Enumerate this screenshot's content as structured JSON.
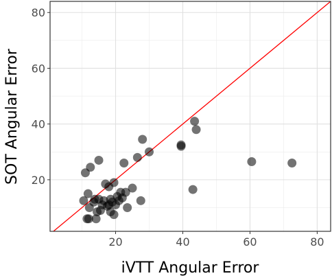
{
  "chart_data": {
    "type": "scatter",
    "xlabel": "iVTT Angular Error",
    "ylabel": "SOT Angular Error",
    "xlim": [
      0.5,
      84
    ],
    "ylim": [
      1.5,
      84
    ],
    "x_ticks": [
      20,
      40,
      60,
      80
    ],
    "y_ticks": [
      20,
      40,
      60,
      80
    ],
    "x_tick_labels": [
      "20",
      "40",
      "60",
      "80"
    ],
    "y_tick_labels": [
      "20",
      "40",
      "60",
      "80"
    ],
    "grid": true,
    "reference_line": {
      "slope": 1,
      "intercept": 0,
      "color": "#ff0000"
    },
    "point_color": "#000000",
    "point_opacity": 0.55,
    "points": [
      {
        "x": 10.5,
        "y": 12.5
      },
      {
        "x": 11.0,
        "y": 22.5
      },
      {
        "x": 11.8,
        "y": 15.0
      },
      {
        "x": 12.2,
        "y": 10.0
      },
      {
        "x": 12.5,
        "y": 24.5
      },
      {
        "x": 11.5,
        "y": 6.0
      },
      {
        "x": 12.0,
        "y": 6.0
      },
      {
        "x": 13.5,
        "y": 12.0
      },
      {
        "x": 13.8,
        "y": 13.0
      },
      {
        "x": 14.2,
        "y": 6.0
      },
      {
        "x": 14.5,
        "y": 8.5
      },
      {
        "x": 15.0,
        "y": 27.0
      },
      {
        "x": 15.0,
        "y": 13.0
      },
      {
        "x": 15.5,
        "y": 9.0
      },
      {
        "x": 16.0,
        "y": 11.0
      },
      {
        "x": 16.5,
        "y": 12.5
      },
      {
        "x": 17.0,
        "y": 18.5
      },
      {
        "x": 17.5,
        "y": 10.5
      },
      {
        "x": 18.0,
        "y": 11.0
      },
      {
        "x": 18.0,
        "y": 17.5
      },
      {
        "x": 18.5,
        "y": 13.0
      },
      {
        "x": 18.5,
        "y": 8.5
      },
      {
        "x": 19.0,
        "y": 12.0
      },
      {
        "x": 19.5,
        "y": 19.0
      },
      {
        "x": 19.5,
        "y": 7.5
      },
      {
        "x": 20.0,
        "y": 11.0
      },
      {
        "x": 20.5,
        "y": 14.0
      },
      {
        "x": 21.0,
        "y": 12.5
      },
      {
        "x": 21.5,
        "y": 15.5
      },
      {
        "x": 22.0,
        "y": 13.5
      },
      {
        "x": 22.5,
        "y": 26.0
      },
      {
        "x": 23.0,
        "y": 15.5
      },
      {
        "x": 23.5,
        "y": 10.0
      },
      {
        "x": 25.0,
        "y": 17.0
      },
      {
        "x": 26.5,
        "y": 28.0
      },
      {
        "x": 27.5,
        "y": 12.5
      },
      {
        "x": 28.0,
        "y": 34.5
      },
      {
        "x": 30.0,
        "y": 30.0
      },
      {
        "x": 39.5,
        "y": 32.5
      },
      {
        "x": 39.5,
        "y": 32.0
      },
      {
        "x": 43.0,
        "y": 16.5
      },
      {
        "x": 43.5,
        "y": 41.0
      },
      {
        "x": 44.0,
        "y": 38.0
      },
      {
        "x": 60.5,
        "y": 26.5
      },
      {
        "x": 72.5,
        "y": 26.0
      }
    ]
  }
}
